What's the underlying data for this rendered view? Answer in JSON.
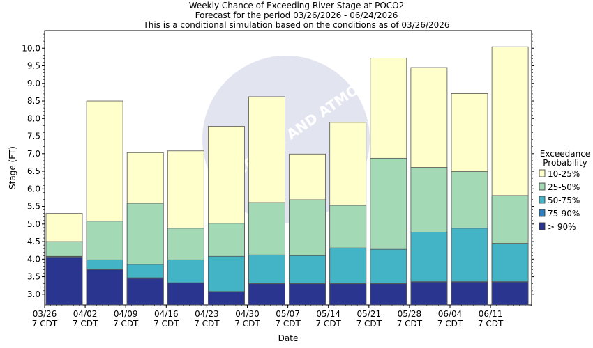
{
  "chart_data": {
    "type": "bar",
    "stacked": true,
    "title": "Weekly Chance of Exceeding River Stage at POCO2",
    "subtitle_1": "Forecast for the period 03/26/2026 - 06/24/2026",
    "subtitle_2": "This is a conditional simulation based on the conditions as of 03/26/2026",
    "xlabel": "Date",
    "ylabel": "Stage (FT)",
    "ylim": [
      2.7,
      10.5
    ],
    "yticks": [
      "3.0",
      "3.5",
      "4.0",
      "4.5",
      "5.0",
      "5.5",
      "6.0",
      "6.5",
      "7.0",
      "7.5",
      "8.0",
      "8.5",
      "9.0",
      "9.5",
      "10.0"
    ],
    "xticks": [
      {
        "date": "03/26",
        "tz": "7 CDT"
      },
      {
        "date": "04/02",
        "tz": "7 CDT"
      },
      {
        "date": "04/09",
        "tz": "7 CDT"
      },
      {
        "date": "04/16",
        "tz": "7 CDT"
      },
      {
        "date": "04/23",
        "tz": "7 CDT"
      },
      {
        "date": "04/30",
        "tz": "7 CDT"
      },
      {
        "date": "05/07",
        "tz": "7 CDT"
      },
      {
        "date": "05/14",
        "tz": "7 CDT"
      },
      {
        "date": "05/21",
        "tz": "7 CDT"
      },
      {
        "date": "05/28",
        "tz": "7 CDT"
      },
      {
        "date": "06/04",
        "tz": "7 CDT"
      },
      {
        "date": "06/11",
        "tz": "7 CDT"
      }
    ],
    "legend": {
      "title_1": "Exceedance",
      "title_2": "Probability",
      "placement": "right"
    },
    "series": [
      {
        "name": "> 90%",
        "color": "#2a3590",
        "top": [
          4.05,
          3.7,
          3.45,
          3.32,
          3.07,
          3.3,
          3.3,
          3.3,
          3.3,
          3.35,
          3.35,
          3.35
        ]
      },
      {
        "name": "75-90%",
        "color": "#2e7fbf",
        "top": [
          4.07,
          3.72,
          3.47,
          3.33,
          3.08,
          3.31,
          3.31,
          3.31,
          3.31,
          3.36,
          3.36,
          3.36
        ]
      },
      {
        "name": "50-75%",
        "color": "#42b4c6",
        "top": [
          4.08,
          3.98,
          3.85,
          3.98,
          4.08,
          4.12,
          4.1,
          4.32,
          4.28,
          4.77,
          4.88,
          4.45
        ]
      },
      {
        "name": "25-50%",
        "color": "#a3d9b5",
        "top": [
          4.5,
          5.08,
          5.59,
          4.88,
          5.02,
          5.61,
          5.69,
          5.53,
          6.87,
          6.61,
          6.49,
          5.81
        ]
      },
      {
        "name": "10-25%",
        "color": "#ffffcc",
        "top": [
          5.3,
          8.5,
          7.03,
          7.08,
          7.78,
          8.62,
          6.99,
          7.89,
          9.72,
          9.45,
          8.71,
          10.04
        ]
      }
    ],
    "legend_order": [
      "10-25%",
      "25-50%",
      "50-75%",
      "75-90%",
      "> 90%"
    ],
    "grid": false,
    "watermark": "NATIONAL OCEANIC AND ATMOSPHERIC"
  }
}
